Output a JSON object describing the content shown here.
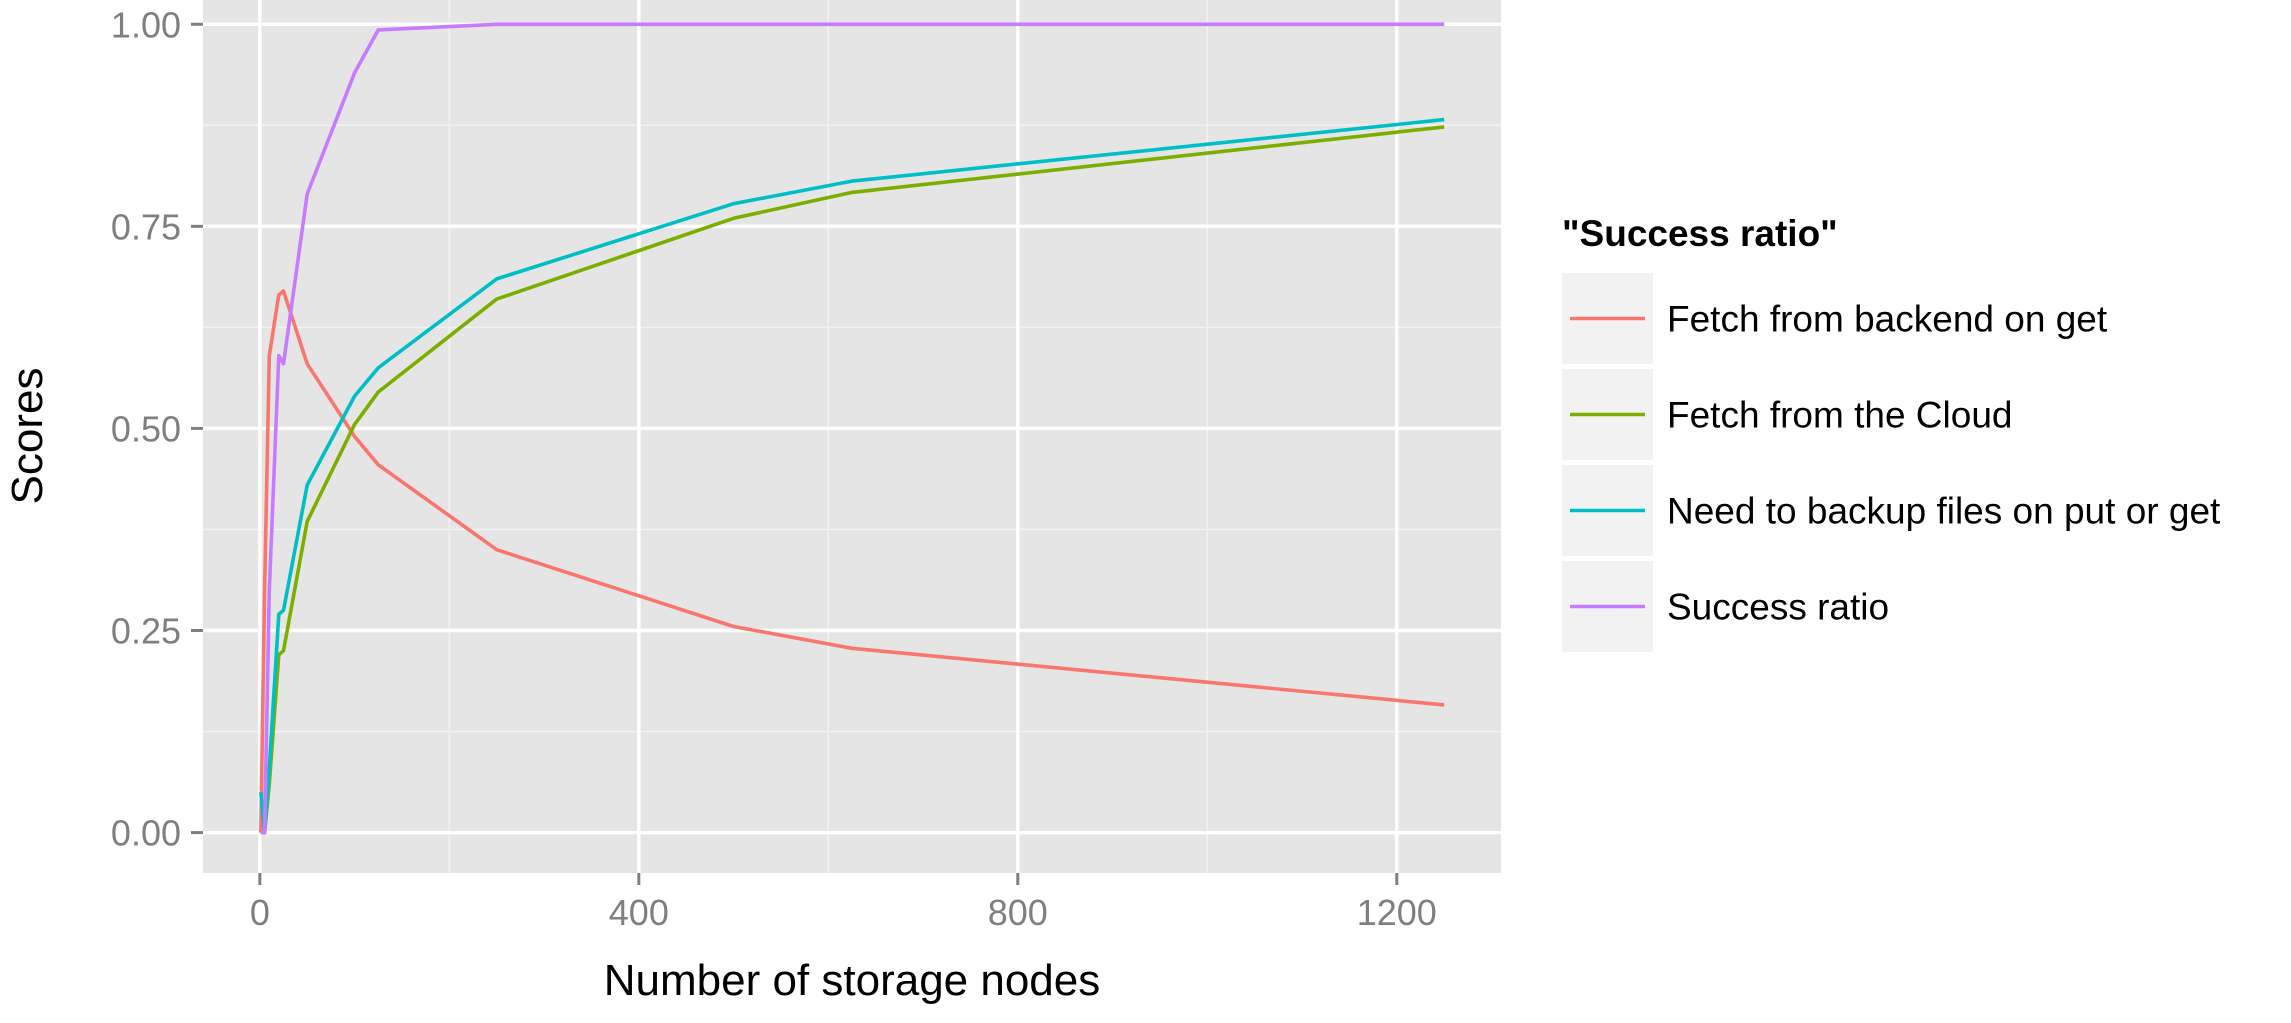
{
  "chart_data": {
    "type": "line",
    "xlabel": "Number of storage nodes",
    "ylabel": "Scores",
    "xlim": [
      -60,
      1310
    ],
    "ylim": [
      -0.05,
      1.03
    ],
    "x_ticks": [
      0,
      400,
      800,
      1200
    ],
    "x_tick_labels": [
      "0",
      "400",
      "800",
      "1200"
    ],
    "y_ticks": [
      0,
      0.25,
      0.5,
      0.75,
      1.0
    ],
    "y_tick_labels": [
      "0.00",
      "0.25",
      "0.50",
      "0.75",
      "1.00"
    ],
    "grid": true,
    "legend": {
      "title": "\"Success ratio\"",
      "position": "right"
    },
    "series": [
      {
        "name": "Fetch from backend on get",
        "color": "#F8766D",
        "x": [
          1,
          5,
          10,
          20,
          25,
          50,
          100,
          125,
          250,
          500,
          625,
          1250
        ],
        "y": [
          0.0,
          0.3,
          0.59,
          0.665,
          0.67,
          0.58,
          0.49,
          0.455,
          0.35,
          0.255,
          0.228,
          0.158
        ]
      },
      {
        "name": "Fetch from the Cloud",
        "color": "#7CAE00",
        "x": [
          1,
          5,
          10,
          20,
          25,
          50,
          100,
          125,
          250,
          500,
          625,
          1250
        ],
        "y": [
          0.0,
          0.0,
          0.06,
          0.22,
          0.225,
          0.385,
          0.505,
          0.545,
          0.66,
          0.76,
          0.792,
          0.873
        ]
      },
      {
        "name": "Need to backup files on put or get",
        "color": "#00BFC4",
        "x": [
          1,
          5,
          10,
          20,
          25,
          50,
          100,
          125,
          250,
          500,
          625,
          1250
        ],
        "y": [
          0.05,
          0.0,
          0.08,
          0.27,
          0.275,
          0.43,
          0.54,
          0.575,
          0.685,
          0.778,
          0.806,
          0.882
        ]
      },
      {
        "name": "Success ratio",
        "color": "#C77CFF",
        "x": [
          1,
          5,
          10,
          20,
          25,
          50,
          100,
          125,
          250,
          500,
          625,
          1250
        ],
        "y": [
          0.0,
          0.0,
          0.3,
          0.59,
          0.58,
          0.79,
          0.94,
          0.993,
          1.0,
          1.0,
          1.0,
          1.0
        ]
      }
    ]
  }
}
